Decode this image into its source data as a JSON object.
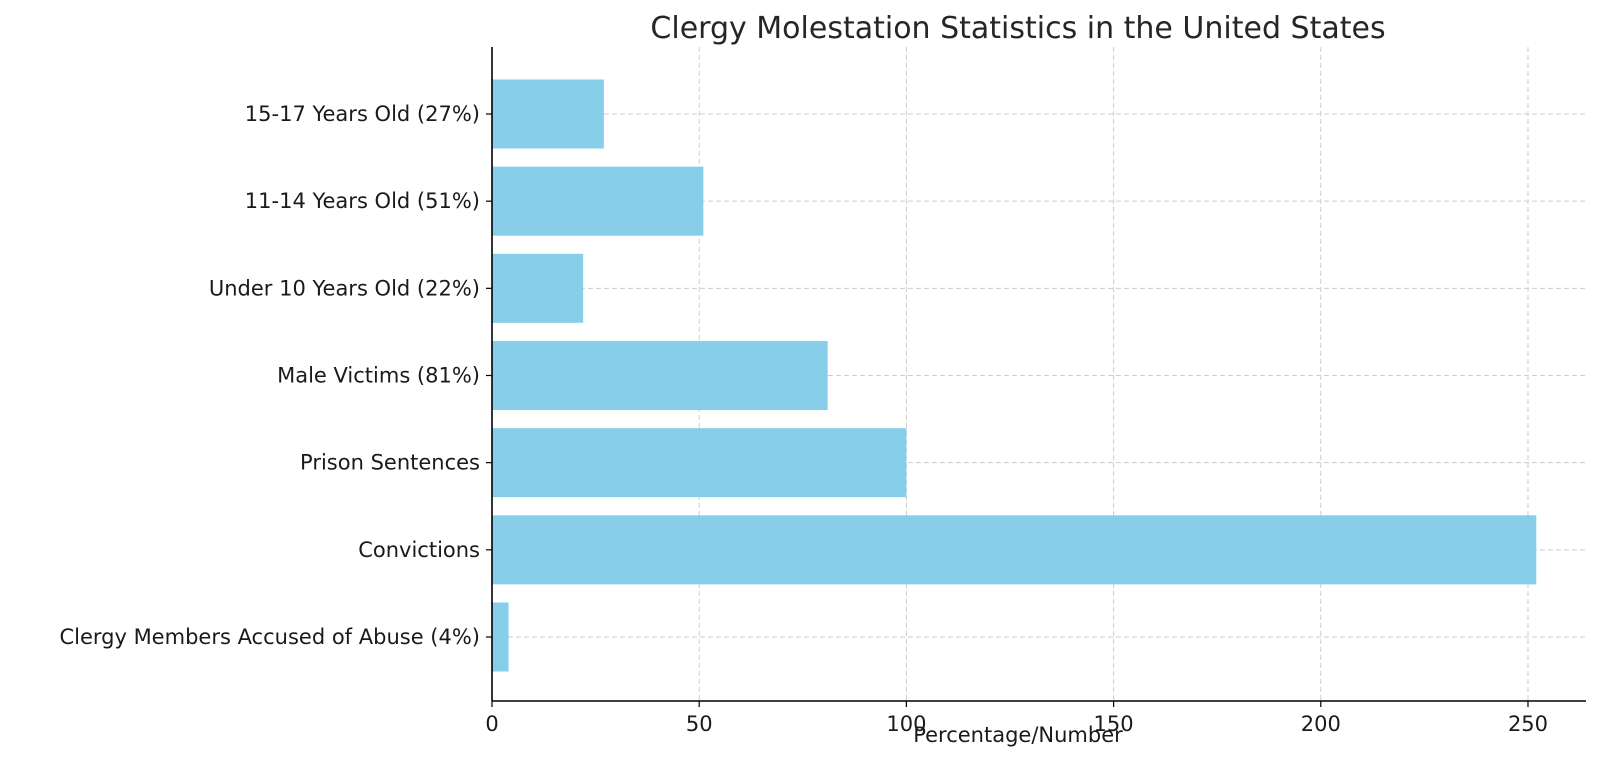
{
  "chart_data": {
    "type": "bar",
    "orientation": "horizontal",
    "title": "Clergy Molestation Statistics in the United States",
    "xlabel": "Percentage/Number",
    "ylabel": "",
    "categories": [
      "Clergy Members Accused of Abuse (4%)",
      "Convictions",
      "Prison Sentences",
      "Male Victims (81%)",
      "Under 10 Years Old (22%)",
      "11-14 Years Old (51%)",
      "15-17 Years Old (27%)"
    ],
    "values": [
      4,
      252,
      100,
      81,
      22,
      51,
      27
    ],
    "xlim": [
      0,
      264
    ],
    "xticks": [
      0,
      50,
      100,
      150,
      200,
      250
    ],
    "grid": true,
    "bar_color": "#87ceeb"
  }
}
